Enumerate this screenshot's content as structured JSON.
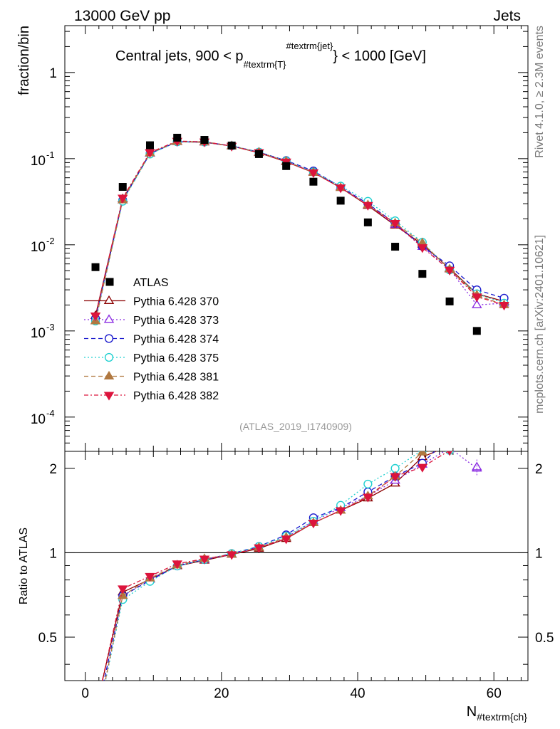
{
  "header": {
    "left": "13000 GeV pp",
    "right": "Jets",
    "side_top": "Rivet 4.1.0, ≥ 2.3M events",
    "side_bottom": "mcplots.cern.ch [arXiv:2401.10621]"
  },
  "chart_data": {
    "type": "scatter",
    "title": "Central jets, 900 < p",
    "title_sub": "#textrm{T}",
    "title_sup": "#textrm{jet}",
    "title_tail": "} < 1000 [GeV]",
    "analysis_id": "(ATLAS_2019_I1740909)",
    "xlabel": "N",
    "xlabel_sub": "#textrm{ch}",
    "ylabel": "fraction/bin",
    "ratio_ylabel": "Ratio to ATLAS",
    "xlim": [
      -3,
      65
    ],
    "ylim": [
      4e-05,
      3.5
    ],
    "yscale": "log",
    "ratio_ylim": [
      0.35,
      2.3
    ],
    "ratio_yscale": "log",
    "x_ticks": [
      "0",
      "20",
      "40",
      "60"
    ],
    "y_ticks": [
      "10^-4",
      "10^-3",
      "10^-2",
      "10^-1",
      "1"
    ],
    "ratio_y_ticks": [
      "0.5",
      "1",
      "2"
    ],
    "x": [
      1.5,
      5.5,
      9.5,
      13.5,
      17.5,
      21.5,
      25.5,
      29.5,
      33.5,
      37.5,
      41.5,
      45.5,
      49.5,
      53.5,
      57.5,
      61.5
    ],
    "reference": {
      "name": "ATLAS",
      "values": [
        0.0055,
        0.047,
        0.143,
        0.175,
        0.165,
        0.142,
        0.113,
        0.082,
        0.054,
        0.0325,
        0.0182,
        0.0095,
        0.0046,
        0.0022,
        0.001,
        null
      ]
    },
    "series": [
      {
        "name": "Pythia 6.428 370",
        "color": "#8b0000",
        "marker": "triangle-open",
        "dash": "",
        "values": [
          0.0015,
          0.034,
          0.115,
          0.157,
          0.155,
          0.14,
          0.117,
          0.092,
          0.069,
          0.046,
          0.0285,
          0.0168,
          0.0101,
          0.0053,
          0.0027,
          0.0022
        ]
      },
      {
        "name": "Pythia 6.428 373",
        "color": "#8a2be2",
        "marker": "triangle-open",
        "dash": "2 3",
        "values": [
          0.0013,
          0.033,
          0.115,
          0.158,
          0.156,
          0.14,
          0.118,
          0.093,
          0.07,
          0.047,
          0.029,
          0.0172,
          0.0095,
          0.0052,
          0.002,
          0.0021
        ]
      },
      {
        "name": "Pythia 6.428 374",
        "color": "#1a1acd",
        "marker": "circle-open",
        "dash": "6 4",
        "values": [
          0.0014,
          0.033,
          0.114,
          0.157,
          0.156,
          0.141,
          0.119,
          0.095,
          0.072,
          0.047,
          0.03,
          0.0178,
          0.0096,
          0.0057,
          0.003,
          0.0024
        ]
      },
      {
        "name": "Pythia 6.428 375",
        "color": "#20d0d0",
        "marker": "circle-open",
        "dash": "2 3",
        "values": [
          0.0013,
          0.032,
          0.113,
          0.157,
          0.156,
          0.141,
          0.119,
          0.094,
          0.07,
          0.048,
          0.032,
          0.019,
          0.0107,
          0.0051,
          0.0027,
          0.0021
        ]
      },
      {
        "name": "Pythia 6.428 381",
        "color": "#b07840",
        "marker": "triangle-filled",
        "dash": "6 4",
        "values": [
          0.0013,
          0.033,
          0.116,
          0.158,
          0.157,
          0.14,
          0.118,
          0.093,
          0.069,
          0.046,
          0.029,
          0.0178,
          0.0105,
          0.0052,
          0.0026,
          0.002
        ]
      },
      {
        "name": "Pythia 6.428 382",
        "color": "#dc143c",
        "marker": "triangle-down-filled",
        "dash": "6 3 2 3",
        "values": [
          0.0015,
          0.035,
          0.118,
          0.16,
          0.157,
          0.14,
          0.118,
          0.092,
          0.069,
          0.046,
          0.0288,
          0.0178,
          0.0093,
          0.0051,
          0.0025,
          0.002
        ]
      }
    ]
  }
}
